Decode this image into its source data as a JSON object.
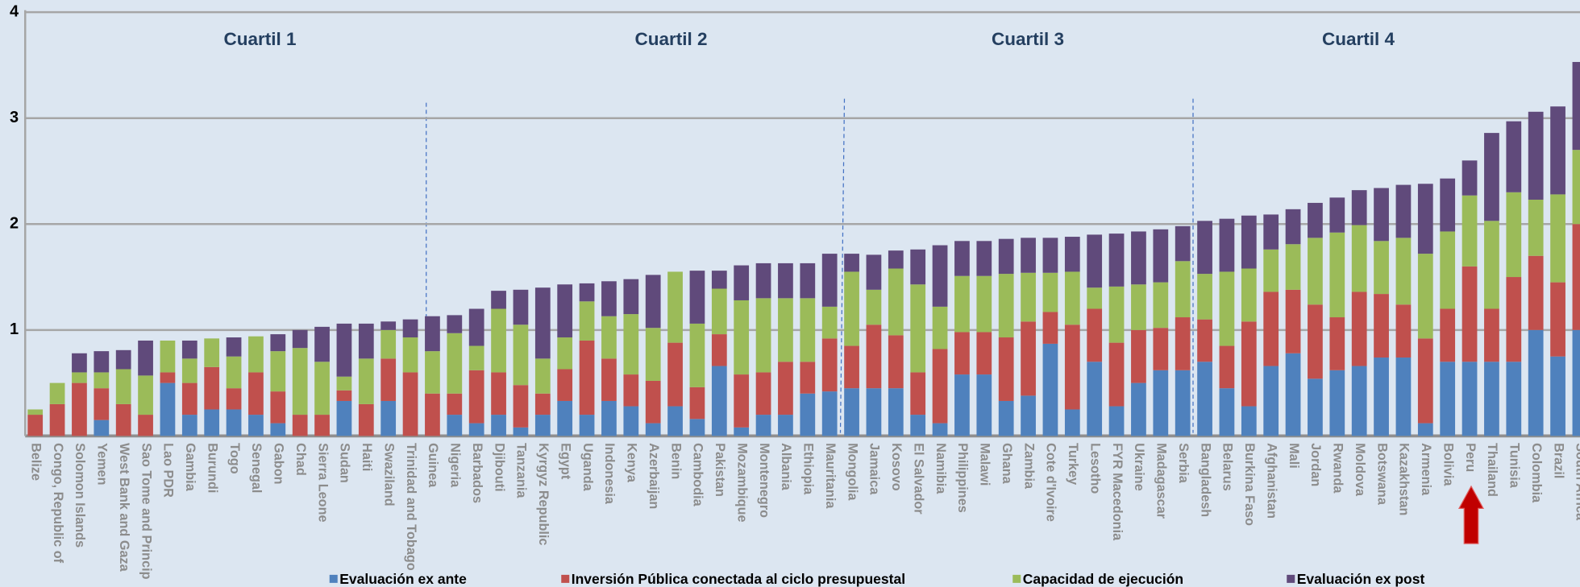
{
  "chart_data": {
    "type": "stacked_bar",
    "annotations": [
      "Cuartil 1",
      "Cuartil 2",
      "Cuartil 3",
      "Cuartil 4"
    ],
    "categories": [
      "Belize",
      "Congo, Republic of",
      "Solomon Islands",
      "Yemen",
      "West Bank and Gaza",
      "Sao Tome and Princip",
      "Lao PDR",
      "Gambia",
      "Burundi",
      "Togo",
      "Senegal",
      "Gabon",
      "Chad",
      "Sierra Leone",
      "Sudan",
      "Haiti",
      "Swaziland",
      "Trinidad and Tobago",
      "Guinea",
      "Nigeria",
      "Barbados",
      "Djibouti",
      "Tanzania",
      "Kyrgyz Republic",
      "Egypt",
      "Uganda",
      "Indonesia",
      "Kenya",
      "Azerbaijan",
      "Benin",
      "Cambodia",
      "Pakistan",
      "Mozambique",
      "Montenegro",
      "Albania",
      "Ethiopia",
      "Mauritania",
      "Mongolia",
      "Jamaica",
      "Kosovo",
      "El Salvador",
      "Namibia",
      "Philippines",
      "Malawi",
      "Ghana",
      "Zambia",
      "Cote d'Ivoire",
      "Turkey",
      "Lesotho",
      "FYR Macedonia",
      "Ukraine",
      "Madagascar",
      "Serbia",
      "Bangladesh",
      "Belarus",
      "Burkina Faso",
      "Afghanistan",
      "Mali",
      "Jordan",
      "Rwanda",
      "Moldova",
      "Botswana",
      "Kazakhstan",
      "Armenia",
      "Bolivia",
      "Peru",
      "Thailand",
      "Tunisia",
      "Colombia",
      "Brazil",
      "South Africa"
    ],
    "series": [
      {
        "name": "Evaluación ex ante",
        "color": "#4f81bd",
        "values": [
          0,
          0,
          0,
          0.15,
          0,
          0,
          0.5,
          0.2,
          0.25,
          0.25,
          0.2,
          0.12,
          0,
          0,
          0.33,
          0,
          0.33,
          0,
          0,
          0.2,
          0.12,
          0.2,
          0.08,
          0.2,
          0.33,
          0.2,
          0.33,
          0.28,
          0.12,
          0.28,
          0.16,
          0.66,
          0.08,
          0.2,
          0.2,
          0.4,
          0.42,
          0.45,
          0.45,
          0.45,
          0.2,
          0.12,
          0.58,
          0.58,
          0.33,
          0.38,
          0.87,
          0.25,
          0.7,
          0.28,
          0.5,
          0.62,
          0.62,
          0.7,
          0.45,
          0.28,
          0.66,
          0.78,
          0.54,
          0.62,
          0.66,
          0.74,
          0.74,
          0.12,
          0.7,
          0.7,
          0.7,
          0.7,
          1.0,
          0.75,
          1.0
        ]
      },
      {
        "name": "Inversión Pública conectada al ciclo presupuestal",
        "color": "#c0504d",
        "values": [
          0.2,
          0.3,
          0.5,
          0.3,
          0.3,
          0.2,
          0.1,
          0.3,
          0.4,
          0.2,
          0.4,
          0.3,
          0.2,
          0.2,
          0.1,
          0.3,
          0.4,
          0.6,
          0.4,
          0.2,
          0.5,
          0.4,
          0.4,
          0.2,
          0.3,
          0.7,
          0.4,
          0.3,
          0.4,
          0.6,
          0.3,
          0.3,
          0.5,
          0.4,
          0.5,
          0.3,
          0.5,
          0.4,
          0.6,
          0.5,
          0.4,
          0.7,
          0.4,
          0.4,
          0.6,
          0.7,
          0.3,
          0.8,
          0.5,
          0.6,
          0.5,
          0.4,
          0.5,
          0.4,
          0.4,
          0.8,
          0.7,
          0.6,
          0.7,
          0.5,
          0.7,
          0.6,
          0.5,
          0.8,
          0.5,
          0.9,
          0.5,
          0.8,
          0.7,
          0.7,
          1.0
        ]
      },
      {
        "name": "Capacidad de ejecución",
        "color": "#9bbb59",
        "values": [
          0.05,
          0.2,
          0.1,
          0.15,
          0.33,
          0.37,
          0.3,
          0.23,
          0.27,
          0.3,
          0.34,
          0.38,
          0.63,
          0.5,
          0.13,
          0.43,
          0.27,
          0.33,
          0.4,
          0.57,
          0.23,
          0.6,
          0.57,
          0.33,
          0.3,
          0.37,
          0.4,
          0.57,
          0.5,
          0.67,
          0.6,
          0.43,
          0.7,
          0.7,
          0.6,
          0.6,
          0.3,
          0.7,
          0.33,
          0.63,
          0.83,
          0.4,
          0.53,
          0.53,
          0.6,
          0.46,
          0.37,
          0.5,
          0.2,
          0.53,
          0.43,
          0.43,
          0.53,
          0.43,
          0.7,
          0.5,
          0.4,
          0.43,
          0.63,
          0.8,
          0.63,
          0.5,
          0.63,
          0.8,
          0.73,
          0.67,
          0.83,
          0.8,
          0.53,
          0.83,
          0.7
        ]
      },
      {
        "name": "Evaluación ex post",
        "color": "#604a7b",
        "values": [
          0,
          0,
          0.18,
          0.2,
          0.18,
          0.33,
          0,
          0.17,
          0,
          0.18,
          0,
          0.16,
          0.17,
          0.33,
          0.5,
          0.33,
          0.08,
          0.17,
          0.33,
          0.17,
          0.35,
          0.17,
          0.33,
          0.67,
          0.5,
          0.17,
          0.33,
          0.33,
          0.5,
          0,
          0.5,
          0.17,
          0.33,
          0.33,
          0.33,
          0.33,
          0.5,
          0.17,
          0.33,
          0.17,
          0.33,
          0.58,
          0.33,
          0.33,
          0.33,
          0.33,
          0.33,
          0.33,
          0.5,
          0.5,
          0.5,
          0.5,
          0.33,
          0.5,
          0.5,
          0.5,
          0.33,
          0.33,
          0.33,
          0.33,
          0.33,
          0.5,
          0.5,
          0.66,
          0.5,
          0.33,
          0.83,
          0.67,
          0.83,
          0.83,
          0.83
        ]
      }
    ],
    "ylim": [
      0,
      4
    ],
    "yticks": [
      1,
      2,
      3,
      4
    ],
    "grid": true,
    "legend": "bottom"
  }
}
